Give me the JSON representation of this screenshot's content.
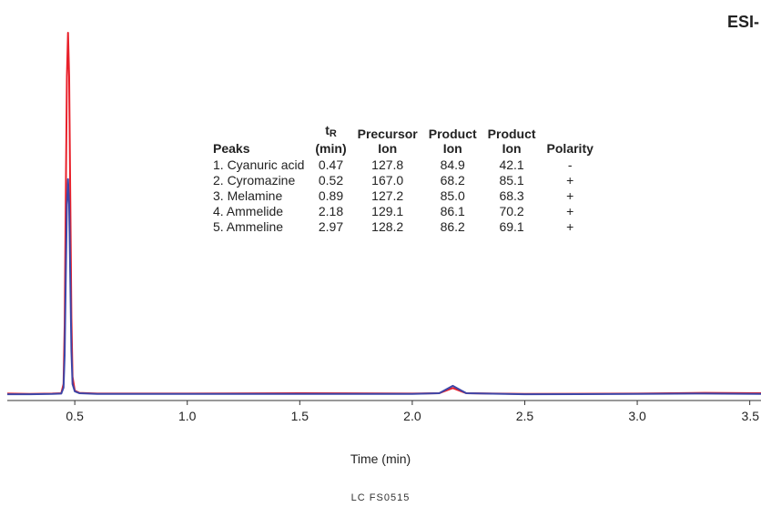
{
  "mode_label": "ESI-",
  "footer_code": "LC FS0515",
  "table": {
    "headers": {
      "peaks": "Peaks",
      "tr": "t",
      "tr_sub": "R",
      "tr_unit": "(min)",
      "precursor_1": "Precursor",
      "precursor_2": "Ion",
      "product_1": "Product",
      "product_2": "Ion",
      "product2_1": "Product",
      "product2_2": "Ion",
      "polarity": "Polarity"
    },
    "rows": [
      {
        "peak": "1. Cyanuric acid",
        "tr": "0.47",
        "precursor": "127.8",
        "product": "84.9",
        "product2": "42.1",
        "polarity": "-"
      },
      {
        "peak": "2. Cyromazine",
        "tr": "0.52",
        "precursor": "167.0",
        "product": "68.2",
        "product2": "85.1",
        "polarity": "+"
      },
      {
        "peak": "3. Melamine",
        "tr": "0.89",
        "precursor": "127.2",
        "product": "85.0",
        "product2": "68.3",
        "polarity": "+"
      },
      {
        "peak": "4. Ammelide",
        "tr": "2.18",
        "precursor": "129.1",
        "product": "86.1",
        "product2": "70.2",
        "polarity": "+"
      },
      {
        "peak": "5. Ammeline",
        "tr": "2.97",
        "precursor": "128.2",
        "product": "86.2",
        "product2": "69.1",
        "polarity": "+"
      }
    ]
  },
  "chart_data": {
    "type": "line",
    "xlabel": "Time (min)",
    "ylabel": "",
    "xlim": [
      0.2,
      3.55
    ],
    "ylim": [
      0,
      100
    ],
    "xticks": [
      0.5,
      1.0,
      1.5,
      2.0,
      2.5,
      3.0,
      3.5
    ],
    "xtick_labels": [
      "0.5",
      "1.0",
      "1.5",
      "2.0",
      "2.5",
      "3.0",
      "3.5"
    ],
    "grid": false,
    "colors": {
      "series_red": "#e8202a",
      "series_blue": "#3d46a8",
      "axis": "#333333"
    },
    "series": [
      {
        "color": "#e8202a",
        "points": [
          [
            0.2,
            1.4
          ],
          [
            0.3,
            1.3
          ],
          [
            0.4,
            1.4
          ],
          [
            0.44,
            1.5
          ],
          [
            0.45,
            4
          ],
          [
            0.455,
            20
          ],
          [
            0.46,
            55
          ],
          [
            0.465,
            88
          ],
          [
            0.47,
            100
          ],
          [
            0.475,
            88
          ],
          [
            0.48,
            55
          ],
          [
            0.485,
            22
          ],
          [
            0.49,
            6
          ],
          [
            0.5,
            2.2
          ],
          [
            0.52,
            1.6
          ],
          [
            0.6,
            1.4
          ],
          [
            1.0,
            1.4
          ],
          [
            1.5,
            1.5
          ],
          [
            2.0,
            1.4
          ],
          [
            2.12,
            1.5
          ],
          [
            2.18,
            2.9
          ],
          [
            2.24,
            1.5
          ],
          [
            2.5,
            1.3
          ],
          [
            3.0,
            1.4
          ],
          [
            3.3,
            1.6
          ],
          [
            3.55,
            1.5
          ]
        ]
      },
      {
        "color": "#3d46a8",
        "points": [
          [
            0.2,
            1.2
          ],
          [
            0.3,
            1.2
          ],
          [
            0.4,
            1.3
          ],
          [
            0.44,
            1.4
          ],
          [
            0.45,
            3
          ],
          [
            0.455,
            12
          ],
          [
            0.46,
            33
          ],
          [
            0.465,
            53
          ],
          [
            0.47,
            60
          ],
          [
            0.475,
            53
          ],
          [
            0.48,
            33
          ],
          [
            0.485,
            13
          ],
          [
            0.49,
            4
          ],
          [
            0.5,
            2.0
          ],
          [
            0.52,
            1.5
          ],
          [
            0.6,
            1.3
          ],
          [
            1.0,
            1.3
          ],
          [
            1.5,
            1.3
          ],
          [
            2.0,
            1.3
          ],
          [
            2.12,
            1.5
          ],
          [
            2.18,
            3.5
          ],
          [
            2.24,
            1.5
          ],
          [
            2.5,
            1.2
          ],
          [
            3.0,
            1.3
          ],
          [
            3.3,
            1.4
          ],
          [
            3.55,
            1.3
          ]
        ]
      }
    ]
  }
}
